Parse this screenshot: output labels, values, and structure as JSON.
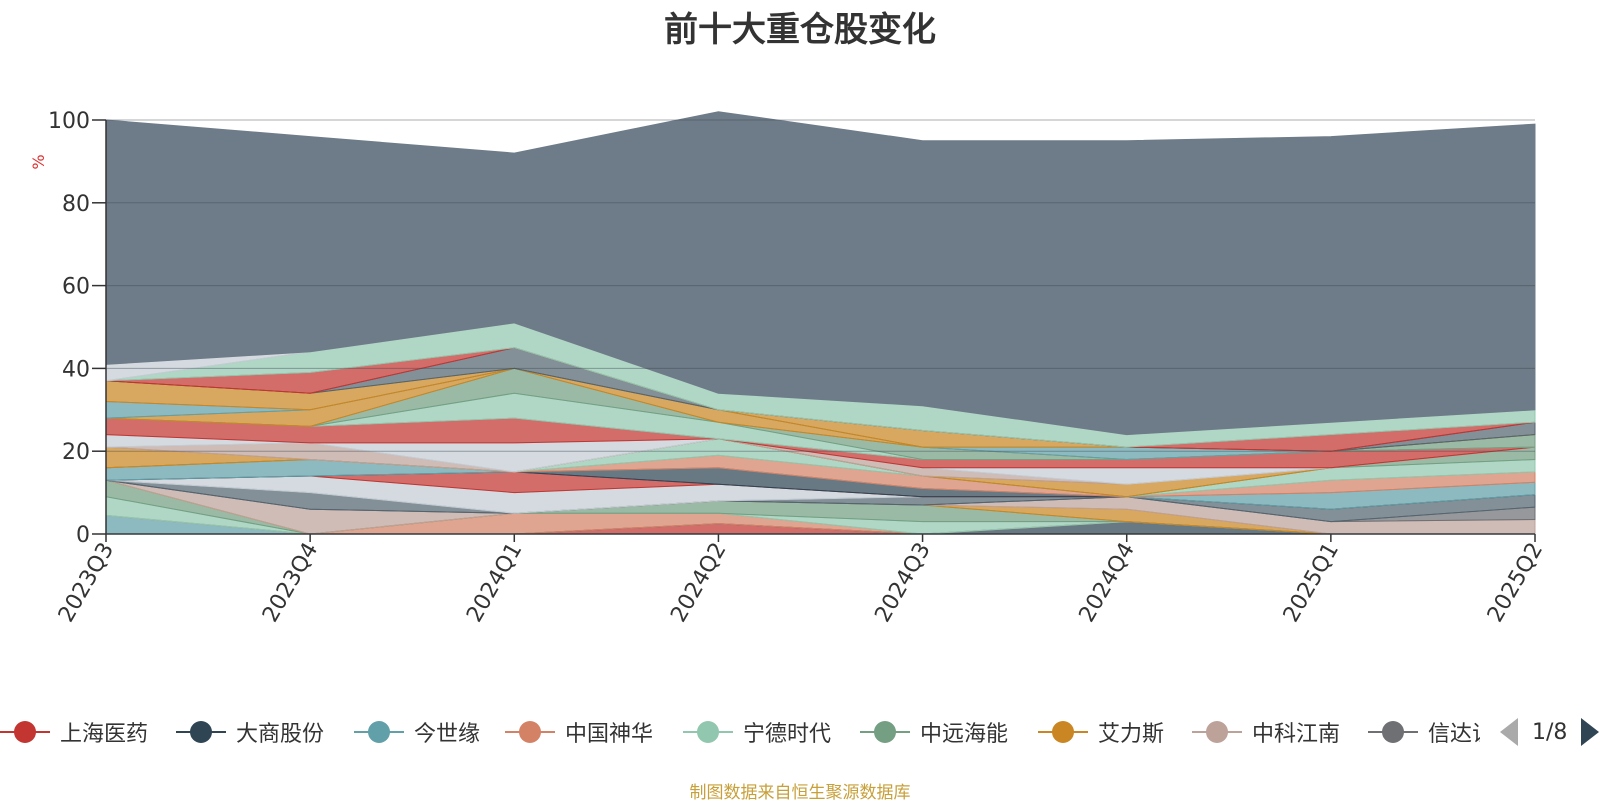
{
  "chart_data": {
    "type": "area",
    "stacked": true,
    "title": "前十大重仓股变化",
    "ylabel": "%",
    "ylim": [
      0,
      100
    ],
    "yticks": [
      0,
      20,
      40,
      60,
      80,
      100
    ],
    "grid": true,
    "categories": [
      "2023Q3",
      "2023Q4",
      "2024Q1",
      "2024Q2",
      "2024Q3",
      "2024Q4",
      "2025Q1",
      "2025Q2"
    ],
    "series": [
      {
        "name": "上海医药",
        "color": "#c23531",
        "values": [
          0,
          0,
          0,
          2.5,
          0,
          0,
          0,
          0
        ]
      },
      {
        "name": "大商股份",
        "color": "#2f4554",
        "values": [
          0,
          0,
          0,
          0,
          0,
          3,
          0,
          0
        ]
      },
      {
        "name": "今世缘",
        "color": "#61a0a8",
        "values": [
          4.5,
          0,
          0,
          0,
          0,
          0,
          0,
          0
        ]
      },
      {
        "name": "中国神华",
        "color": "#d48265",
        "values": [
          0,
          0,
          5,
          2.5,
          0,
          0,
          0,
          0
        ]
      },
      {
        "name": "宁德时代",
        "color": "#91c7ae",
        "values": [
          4.5,
          0,
          0,
          0,
          3,
          0,
          0,
          0
        ]
      },
      {
        "name": "中远海能",
        "color": "#749f83",
        "values": [
          4,
          0,
          0,
          3,
          4,
          0,
          0,
          0
        ]
      },
      {
        "name": "艾力斯",
        "color": "#ca8622",
        "values": [
          0,
          0,
          0,
          0,
          0,
          3,
          0,
          0
        ]
      },
      {
        "name": "中科江南",
        "color": "#bda29a",
        "values": [
          0,
          6,
          0,
          0,
          0,
          3,
          3,
          3.5
        ]
      },
      {
        "name": "信达证券",
        "color": "#6e7074",
        "values": [
          0,
          0,
          0,
          0,
          0,
          0,
          0,
          3
        ]
      },
      {
        "name": "",
        "color": "#546570",
        "values": [
          0,
          4,
          0,
          0,
          2,
          0,
          3,
          3
        ]
      },
      {
        "name": "",
        "color": "#c4ccd3",
        "values": [
          0,
          4,
          5,
          4,
          0,
          0,
          0,
          0
        ]
      },
      {
        "name": "",
        "color": "#c23531",
        "values": [
          0,
          0,
          5,
          0,
          0,
          0,
          0,
          0
        ]
      },
      {
        "name": "",
        "color": "#2f4554",
        "values": [
          0,
          0,
          0,
          4,
          2,
          0,
          0,
          0
        ]
      },
      {
        "name": "",
        "color": "#61a0a8",
        "values": [
          3,
          4,
          0,
          0,
          0,
          0,
          4,
          3
        ]
      },
      {
        "name": "",
        "color": "#d48265",
        "values": [
          0,
          0,
          0,
          3,
          3,
          0,
          3,
          2.5
        ]
      },
      {
        "name": "",
        "color": "#91c7ae",
        "values": [
          0,
          0,
          0,
          4,
          0,
          0,
          3,
          3
        ]
      },
      {
        "name": "",
        "color": "#749f83",
        "values": [
          0,
          0,
          0,
          0,
          0,
          0,
          0,
          3
        ]
      },
      {
        "name": "",
        "color": "#ca8622",
        "values": [
          5,
          0,
          0,
          0,
          0,
          3,
          0,
          0
        ]
      },
      {
        "name": "",
        "color": "#bda29a",
        "values": [
          0,
          4,
          0,
          0,
          2,
          0,
          0,
          0
        ]
      },
      {
        "name": "",
        "color": "#c4ccd3",
        "values": [
          3,
          0,
          7,
          0,
          0,
          4,
          0,
          0
        ]
      },
      {
        "name": "",
        "color": "#c23531",
        "values": [
          4,
          4,
          6,
          0,
          2,
          2,
          4,
          0
        ]
      },
      {
        "name": "",
        "color": "#91c7ae",
        "values": [
          0,
          0,
          6,
          4,
          0,
          0,
          0,
          0
        ]
      },
      {
        "name": "",
        "color": "#749f83",
        "values": [
          0,
          0,
          6,
          0,
          3,
          0,
          0,
          3
        ]
      },
      {
        "name": "",
        "color": "#ca8622",
        "values": [
          0,
          4,
          0,
          3,
          0,
          0,
          0,
          0
        ]
      },
      {
        "name": "",
        "color": "#61a0a8",
        "values": [
          4,
          0,
          0,
          0,
          0,
          3,
          0,
          0
        ]
      },
      {
        "name": "",
        "color": "#ca8622",
        "values": [
          5,
          4,
          0,
          0,
          4,
          0,
          0,
          0
        ]
      },
      {
        "name": "",
        "color": "#546570",
        "values": [
          0,
          0,
          5,
          0,
          0,
          0,
          0,
          3
        ]
      },
      {
        "name": "",
        "color": "#c23531",
        "values": [
          0,
          5,
          0,
          0,
          0,
          0,
          4,
          0
        ]
      },
      {
        "name": "",
        "color": "#91c7ae",
        "values": [
          0,
          5,
          6,
          4,
          6,
          3,
          3,
          3
        ]
      },
      {
        "name": "",
        "color": "#c4ccd3",
        "values": [
          4,
          0,
          0,
          0,
          0,
          0,
          0,
          0
        ]
      },
      {
        "name": "",
        "color": "#6e7b88",
        "values": [
          59,
          52,
          41,
          68,
          64,
          71,
          69,
          69
        ]
      }
    ],
    "legend": {
      "position": "bottom",
      "page_text": "1/8"
    },
    "source_note": "制图数据来自恒生聚源数据库"
  }
}
